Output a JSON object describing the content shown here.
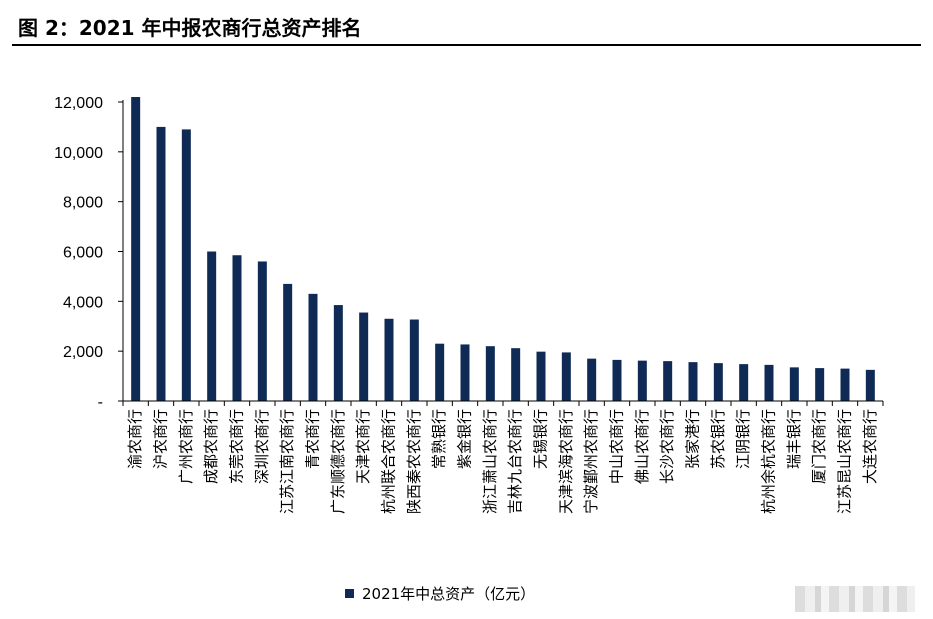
{
  "header": {
    "title": "图 2：2021 年中报农商行总资产排名"
  },
  "colors": {
    "bar": "#0f2b55",
    "axis": "#000000",
    "text": "#000000"
  },
  "legend": {
    "label": "2021年中总资产（亿元）",
    "position": "bottom-center"
  },
  "watermark": {
    "icon": "blurred-watermark-icon"
  },
  "chart_data": {
    "type": "bar",
    "title": "",
    "xlabel": "",
    "ylabel": "",
    "ylim": [
      0,
      12000
    ],
    "yticks": [
      0,
      2000,
      4000,
      6000,
      8000,
      10000,
      12000
    ],
    "ytick_labels": [
      "-",
      "2,000",
      "4,000",
      "6,000",
      "8,000",
      "10,000",
      "12,000"
    ],
    "grid": false,
    "categories": [
      "渝农商行",
      "沪农商行",
      "广州农商行",
      "成都农商行",
      "东莞农商行",
      "深圳农商行",
      "江苏江南农商行",
      "青农商行",
      "广东顺德农商行",
      "天津农商行",
      "杭州联合农商行",
      "陕西秦农农商行",
      "常熟银行",
      "紫金银行",
      "浙江萧山农商行",
      "吉林九台农商行",
      "无锡银行",
      "天津滨海农商行",
      "宁波鄞州农商行",
      "中山农商行",
      "佛山农商行",
      "长沙农商行",
      "张家港行",
      "苏农银行",
      "江阴银行",
      "杭州余杭农商行",
      "瑞丰银行",
      "厦门农商行",
      "江苏昆山农商行",
      "大连农商行"
    ],
    "series": [
      {
        "name": "2021年中总资产（亿元）",
        "values": [
          12200,
          11000,
          10900,
          6000,
          5850,
          5600,
          4700,
          4300,
          3850,
          3550,
          3300,
          3270,
          2300,
          2270,
          2200,
          2120,
          1980,
          1950,
          1700,
          1650,
          1620,
          1600,
          1560,
          1520,
          1480,
          1450,
          1350,
          1320,
          1300,
          1250
        ]
      }
    ]
  }
}
